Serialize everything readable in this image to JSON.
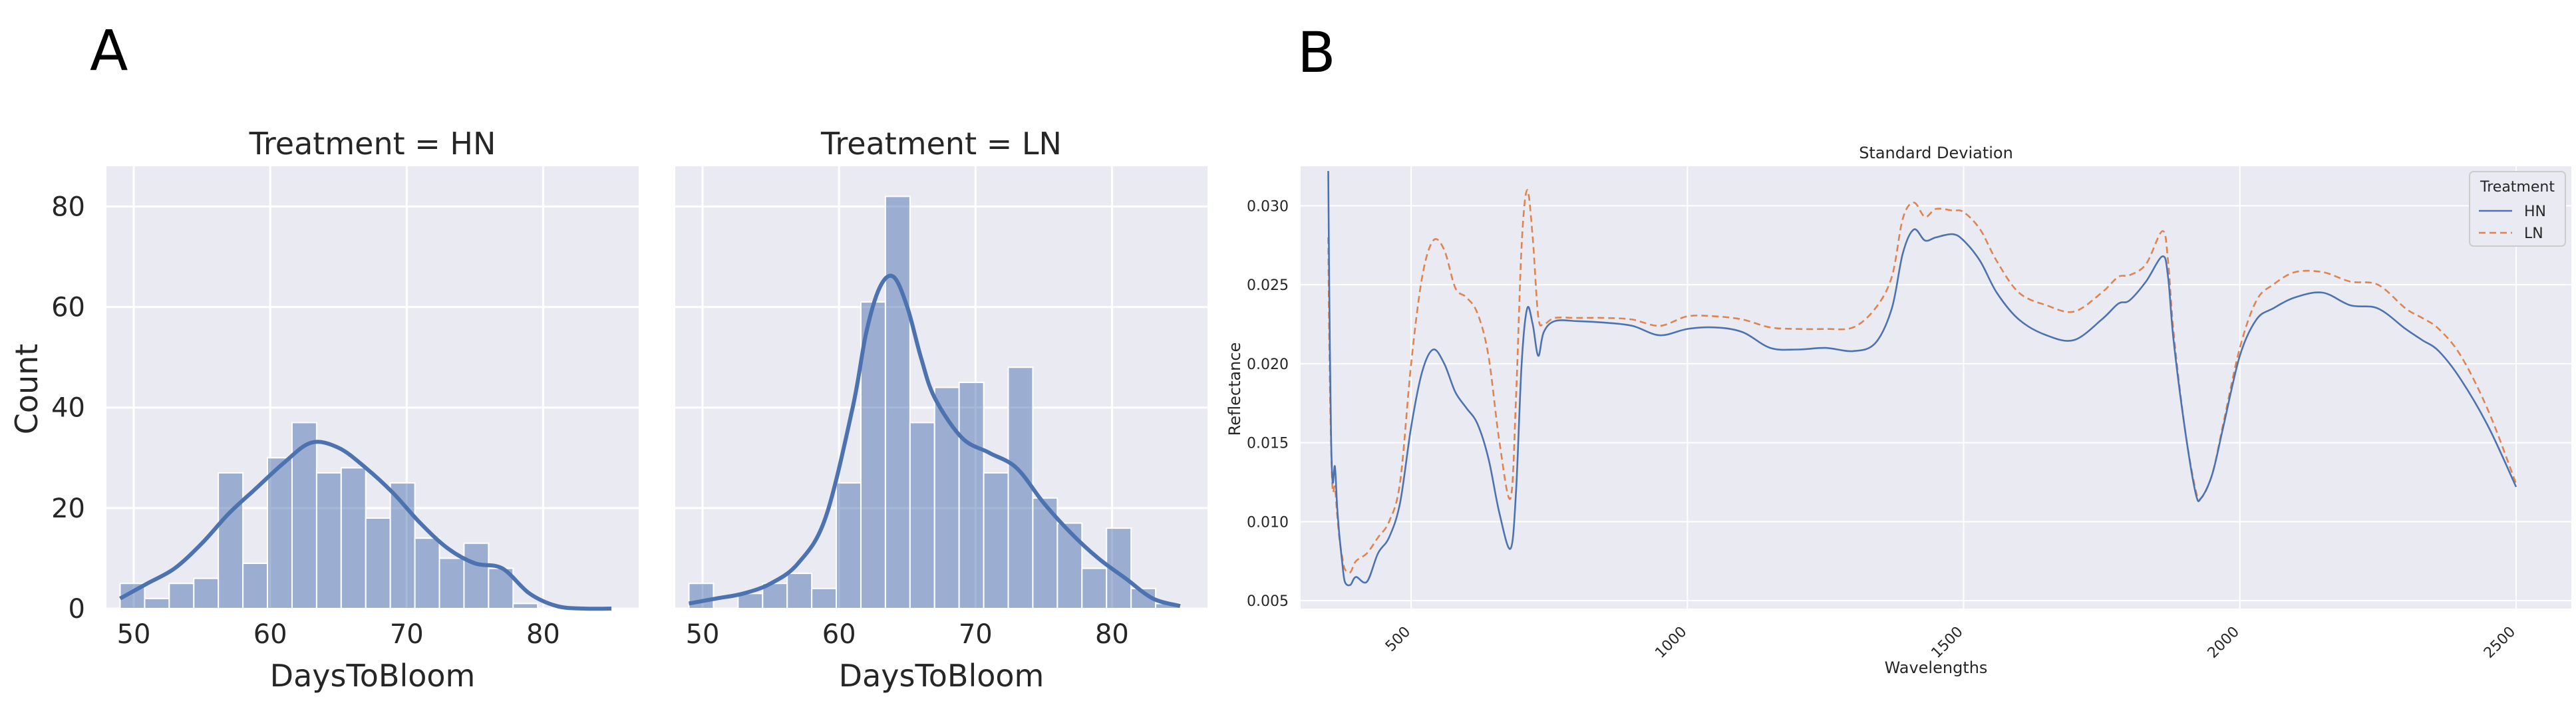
{
  "figure": {
    "panel_a_label": "A",
    "panel_b_label": "B"
  },
  "colors": {
    "background": "#eaeaf2",
    "grid": "#ffffff",
    "hn": "#4c72b0",
    "ln": "#dd8452",
    "bar_fill": "#4c72b0",
    "bar_opacity": "0.5"
  },
  "chart_data": [
    {
      "type": "bar",
      "title": "Treatment = HN",
      "xlabel": "DaysToBloom",
      "ylabel": "Count",
      "xlim": [
        48,
        87
      ],
      "ylim": [
        0,
        88
      ],
      "xticks": [
        50,
        60,
        70,
        80
      ],
      "yticks": [
        0,
        20,
        40,
        60,
        80
      ],
      "grid": true,
      "bin_start": 49,
      "bin_width": 1.8,
      "values": [
        5,
        2,
        5,
        6,
        27,
        9,
        30,
        37,
        27,
        28,
        18,
        25,
        14,
        10,
        13,
        8,
        1,
        0,
        0,
        0
      ],
      "kde": {
        "x": [
          49,
          51,
          53,
          55,
          57,
          59,
          61,
          63,
          65,
          67,
          69,
          71,
          73,
          75,
          77,
          79,
          81,
          83,
          85
        ],
        "y": [
          2,
          5,
          8,
          13,
          19,
          24,
          29,
          33,
          32,
          28,
          23,
          17,
          12,
          9,
          8,
          3,
          0.5,
          0,
          0
        ]
      }
    },
    {
      "type": "bar",
      "title": "Treatment = LN",
      "xlabel": "DaysToBloom",
      "ylabel": "",
      "xlim": [
        48,
        87
      ],
      "ylim": [
        0,
        88
      ],
      "xticks": [
        50,
        60,
        70,
        80
      ],
      "yticks": [
        0,
        20,
        40,
        60,
        80
      ],
      "grid": true,
      "bin_start": 49,
      "bin_width": 1.8,
      "values": [
        5,
        0,
        3,
        5,
        7,
        4,
        25,
        61,
        82,
        37,
        44,
        45,
        27,
        48,
        22,
        17,
        8,
        16,
        4,
        1
      ],
      "kde": {
        "x": [
          49,
          51,
          53,
          55,
          57,
          59,
          61,
          62,
          63,
          64,
          65,
          66,
          67,
          69,
          71,
          73,
          75,
          77,
          79,
          81,
          83,
          85
        ],
        "y": [
          1,
          2,
          3,
          5,
          9,
          18,
          40,
          55,
          64,
          66,
          60,
          50,
          42,
          34,
          31,
          28,
          21,
          15,
          10,
          6,
          2,
          0.5
        ]
      }
    },
    {
      "type": "line",
      "title": "Standard Deviation",
      "xlabel": "Wavelengths",
      "ylabel": "Reflectance",
      "xlim": [
        300,
        2600
      ],
      "ylim": [
        0.0045,
        0.0325
      ],
      "xticks": [
        500,
        1000,
        1500,
        2000,
        2500
      ],
      "yticks": [
        0.005,
        0.01,
        0.015,
        0.02,
        0.025,
        0.03
      ],
      "ytick_labels": [
        "0.005",
        "0.010",
        "0.015",
        "0.020",
        "0.025",
        "0.030"
      ],
      "grid": true,
      "legend_title": "Treatment",
      "legend_position": "top-right",
      "series": [
        {
          "name": "HN",
          "style": "solid",
          "x": [
            350,
            352,
            355,
            358,
            362,
            366,
            370,
            375,
            380,
            390,
            400,
            420,
            440,
            460,
            480,
            500,
            520,
            540,
            560,
            580,
            600,
            620,
            640,
            660,
            680,
            690,
            700,
            710,
            720,
            730,
            740,
            760,
            800,
            850,
            900,
            950,
            1000,
            1050,
            1100,
            1150,
            1200,
            1250,
            1300,
            1340,
            1370,
            1390,
            1410,
            1430,
            1450,
            1480,
            1500,
            1530,
            1560,
            1600,
            1650,
            1700,
            1750,
            1780,
            1800,
            1830,
            1860,
            1870,
            1880,
            1900,
            1920,
            1930,
            1950,
            1970,
            2000,
            2030,
            2060,
            2100,
            2150,
            2200,
            2250,
            2300,
            2330,
            2360,
            2400,
            2450,
            2500
          ],
          "y": [
            0.0322,
            0.024,
            0.0155,
            0.0125,
            0.0135,
            0.011,
            0.0092,
            0.0075,
            0.0062,
            0.006,
            0.0065,
            0.0062,
            0.008,
            0.009,
            0.0112,
            0.016,
            0.0195,
            0.0209,
            0.02,
            0.0182,
            0.0172,
            0.0162,
            0.014,
            0.0105,
            0.0083,
            0.012,
            0.02,
            0.0235,
            0.0225,
            0.0205,
            0.022,
            0.0227,
            0.0227,
            0.0226,
            0.0224,
            0.0218,
            0.0222,
            0.0223,
            0.022,
            0.021,
            0.0209,
            0.021,
            0.0208,
            0.0213,
            0.0235,
            0.027,
            0.0285,
            0.0278,
            0.028,
            0.0282,
            0.0278,
            0.0265,
            0.0245,
            0.0228,
            0.0218,
            0.0215,
            0.0228,
            0.0238,
            0.024,
            0.0252,
            0.0268,
            0.0255,
            0.0215,
            0.016,
            0.0118,
            0.0115,
            0.013,
            0.016,
            0.0205,
            0.0228,
            0.0235,
            0.0242,
            0.0245,
            0.0237,
            0.0235,
            0.0222,
            0.0215,
            0.0208,
            0.019,
            0.016,
            0.0122
          ]
        },
        {
          "name": "LN",
          "style": "dashed",
          "x": [
            350,
            352,
            355,
            358,
            362,
            366,
            370,
            375,
            380,
            390,
            400,
            420,
            440,
            460,
            480,
            500,
            520,
            540,
            560,
            580,
            600,
            620,
            640,
            660,
            680,
            690,
            700,
            710,
            720,
            730,
            740,
            760,
            800,
            850,
            900,
            950,
            1000,
            1050,
            1100,
            1150,
            1200,
            1250,
            1300,
            1340,
            1370,
            1390,
            1410,
            1430,
            1450,
            1480,
            1500,
            1530,
            1560,
            1600,
            1650,
            1700,
            1750,
            1780,
            1800,
            1830,
            1860,
            1870,
            1880,
            1900,
            1920,
            1930,
            1950,
            1970,
            2000,
            2030,
            2060,
            2100,
            2150,
            2200,
            2250,
            2300,
            2330,
            2360,
            2400,
            2450,
            2500
          ],
          "y": [
            0.028,
            0.021,
            0.015,
            0.012,
            0.0122,
            0.0105,
            0.009,
            0.0078,
            0.007,
            0.0068,
            0.0075,
            0.008,
            0.009,
            0.01,
            0.0125,
            0.02,
            0.0255,
            0.0278,
            0.0272,
            0.0248,
            0.0242,
            0.0232,
            0.0205,
            0.015,
            0.0115,
            0.018,
            0.0275,
            0.031,
            0.028,
            0.023,
            0.0225,
            0.0229,
            0.0229,
            0.0229,
            0.0228,
            0.0224,
            0.023,
            0.023,
            0.0228,
            0.0223,
            0.0222,
            0.0222,
            0.0223,
            0.0235,
            0.0255,
            0.0292,
            0.0302,
            0.0293,
            0.0298,
            0.0297,
            0.0296,
            0.0285,
            0.0265,
            0.0245,
            0.0237,
            0.0233,
            0.0245,
            0.0255,
            0.0256,
            0.0263,
            0.0284,
            0.0265,
            0.022,
            0.016,
            0.012,
            0.0115,
            0.013,
            0.0162,
            0.021,
            0.024,
            0.025,
            0.0258,
            0.0258,
            0.0252,
            0.025,
            0.0235,
            0.0229,
            0.0222,
            0.0205,
            0.017,
            0.0124
          ]
        }
      ]
    }
  ]
}
